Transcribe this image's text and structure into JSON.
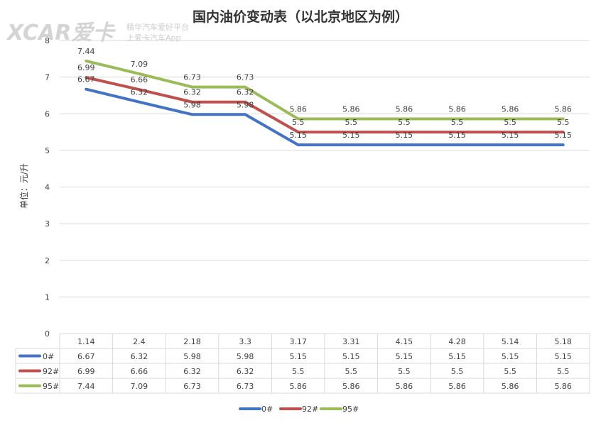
{
  "chart_data": {
    "type": "line",
    "title": "国内油价变动表（以北京地区为例）",
    "ylabel": "单位：元/升",
    "ylim": [
      0,
      8
    ],
    "yticks": [
      0,
      1,
      2,
      3,
      4,
      5,
      6,
      7,
      8
    ],
    "categories": [
      "1.14",
      "2.4",
      "2.18",
      "3.3",
      "3.17",
      "3.31",
      "4.15",
      "4.28",
      "5.14",
      "5.18"
    ],
    "series": [
      {
        "name": "0#",
        "color": "#4472c4",
        "values": [
          6.67,
          6.32,
          5.98,
          5.98,
          5.15,
          5.15,
          5.15,
          5.15,
          5.15,
          5.15
        ]
      },
      {
        "name": "92#",
        "color": "#c0504d",
        "values": [
          6.99,
          6.66,
          6.32,
          6.32,
          5.5,
          5.5,
          5.5,
          5.5,
          5.5,
          5.5
        ]
      },
      {
        "name": "95#",
        "color": "#9bbb59",
        "values": [
          7.44,
          7.09,
          6.73,
          6.73,
          5.86,
          5.86,
          5.86,
          5.86,
          5.86,
          5.86
        ]
      }
    ],
    "grid": true,
    "legend": "bottom",
    "data_table": true
  },
  "watermark": {
    "logo": "XCAR爱卡",
    "line1": "精华汽车爱好平台",
    "line2": "上爱卡汽车App"
  }
}
